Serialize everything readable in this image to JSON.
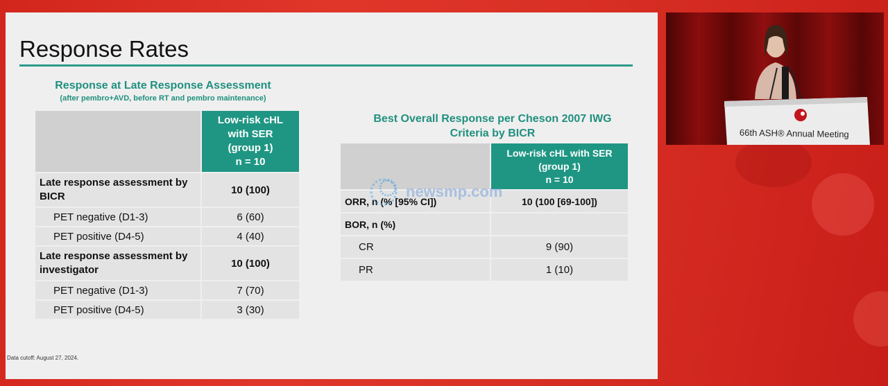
{
  "slide": {
    "title": "Response Rates",
    "footnote": "Data cutoff: August 27, 2024."
  },
  "table1": {
    "title": "Response at Late Response Assessment",
    "subtitle": "(after pembro+AVD, before RT and pembro maintenance)",
    "header": [
      "Low-risk cHL",
      "with SER",
      "(group 1)",
      "n = 10"
    ],
    "rows": [
      {
        "label": "Late response assessment by BICR",
        "value": "10 (100)"
      },
      {
        "label": "PET negative (D1-3)",
        "value": "6 (60)"
      },
      {
        "label": "PET positive (D4-5)",
        "value": "4 (40)"
      },
      {
        "label": "Late response assessment by investigator",
        "value": "10 (100)"
      },
      {
        "label": "PET negative (D1-3)",
        "value": "7 (70)"
      },
      {
        "label": "PET positive (D4-5)",
        "value": "3 (30)"
      }
    ]
  },
  "table2": {
    "title_line1": "Best Overall Response per Cheson 2007 IWG",
    "title_line2": "Criteria by BICR",
    "header": [
      "Low-risk cHL with SER",
      "(group 1)",
      "n = 10"
    ],
    "rows": [
      {
        "label": "ORR, n (% [95% CI])",
        "value": "10 (100 [69-100])"
      },
      {
        "label": "BOR, n (%)",
        "value": ""
      },
      {
        "label": "CR",
        "value": "9 (90)"
      },
      {
        "label": "PR",
        "value": "1 (10)"
      }
    ]
  },
  "watermark": {
    "text": "newsmp.com"
  },
  "video": {
    "podium_text": "66th ASH® Annual Meeting"
  }
}
